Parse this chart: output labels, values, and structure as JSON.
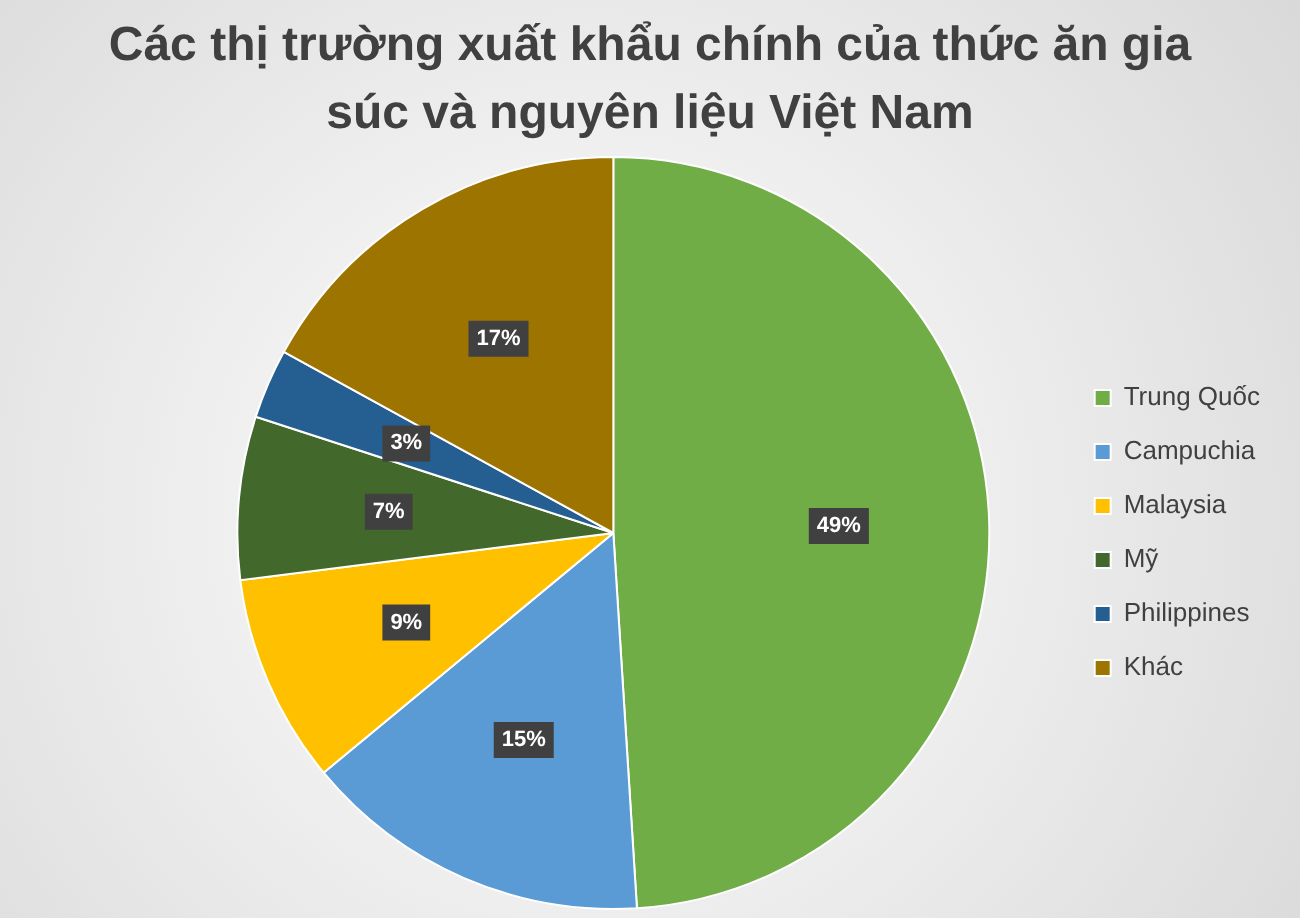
{
  "chart_data": {
    "type": "pie",
    "title": "Các thị trường xuất khẩu chính của thức ăn gia súc và nguyên liệu Việt Nam",
    "categories": [
      "Trung Quốc",
      "Campuchia",
      "Malaysia",
      "Mỹ",
      "Philippines",
      "Khác"
    ],
    "values": [
      49,
      15,
      9,
      7,
      3,
      17
    ],
    "colors": [
      "#70ad47",
      "#5b9bd5",
      "#ffc000",
      "#43682b",
      "#255e91",
      "#9e7400"
    ],
    "value_labels": [
      "49%",
      "15%",
      "9%",
      "7%",
      "3%",
      "17%"
    ],
    "legend": "right"
  }
}
